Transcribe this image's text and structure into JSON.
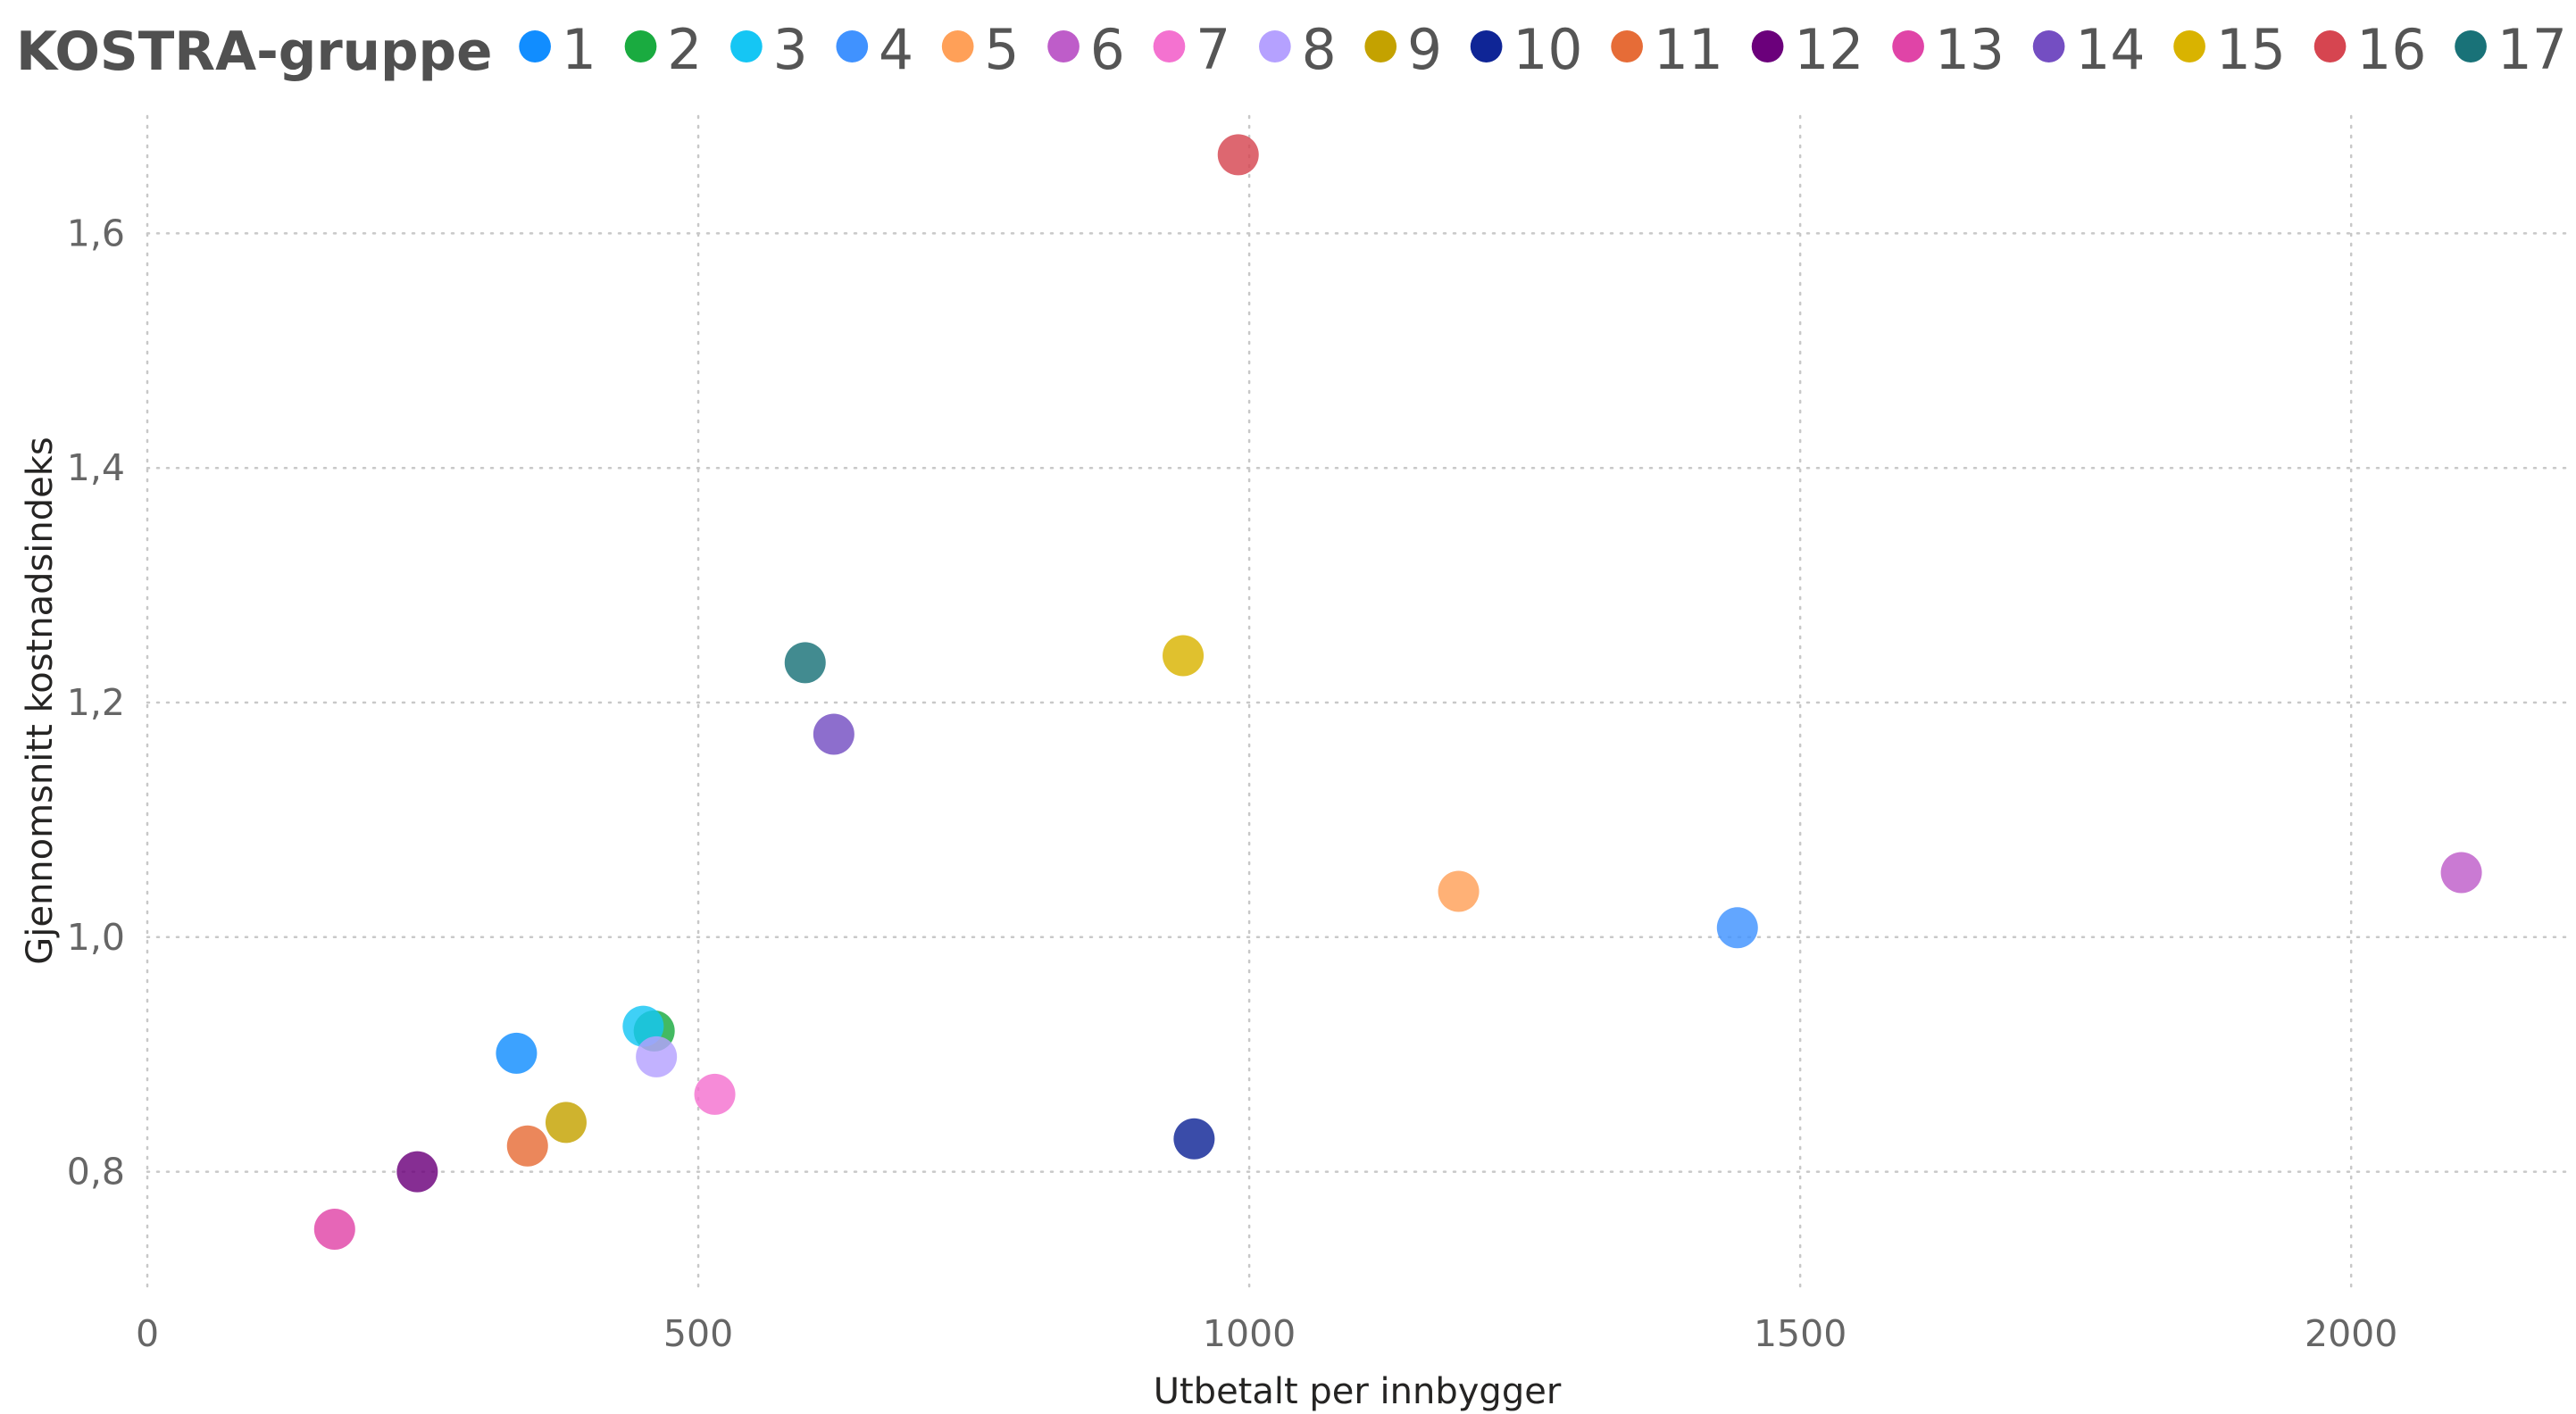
{
  "chart_data": {
    "type": "scatter",
    "legend_title": "KOSTRA-gruppe",
    "legend_position": "top-left",
    "xlabel": "Utbetalt per innbygger",
    "ylabel": "Gjennomsnitt kostnadsindeks",
    "xlim": [
      0,
      2200
    ],
    "ylim": [
      0.7,
      1.7
    ],
    "x_ticks": [
      0,
      500,
      1000,
      1500,
      2000
    ],
    "x_tick_labels": [
      "0",
      "500",
      "1000",
      "1500",
      "2000"
    ],
    "y_ticks": [
      0.8,
      1.0,
      1.2,
      1.4,
      1.6
    ],
    "y_tick_labels": [
      "0,8",
      "1,0",
      "1,2",
      "1,4",
      "1,6"
    ],
    "grid": true,
    "series": [
      {
        "name": "1",
        "color": "#118DFF",
        "x": 335,
        "y": 0.901
      },
      {
        "name": "2",
        "color": "#1AAB40",
        "x": 460,
        "y": 0.92
      },
      {
        "name": "3",
        "color": "#15C6F4",
        "x": 450,
        "y": 0.924
      },
      {
        "name": "4",
        "color": "#4092FF",
        "x": 1443,
        "y": 1.008
      },
      {
        "name": "5",
        "color": "#FFA058",
        "x": 1190,
        "y": 1.039
      },
      {
        "name": "6",
        "color": "#BE5DC9",
        "x": 2100,
        "y": 1.055
      },
      {
        "name": "7",
        "color": "#F472D0",
        "x": 515,
        "y": 0.866
      },
      {
        "name": "8",
        "color": "#B5A1FF",
        "x": 462,
        "y": 0.898
      },
      {
        "name": "9",
        "color": "#C4A200",
        "x": 380,
        "y": 0.842
      },
      {
        "name": "10",
        "color": "#0F2596",
        "x": 950,
        "y": 0.828
      },
      {
        "name": "11",
        "color": "#E66C37",
        "x": 345,
        "y": 0.822
      },
      {
        "name": "12",
        "color": "#6B007B",
        "x": 245,
        "y": 0.8
      },
      {
        "name": "13",
        "color": "#E044A7",
        "x": 170,
        "y": 0.751
      },
      {
        "name": "14",
        "color": "#744EC2",
        "x": 623,
        "y": 1.173
      },
      {
        "name": "15",
        "color": "#D9B300",
        "x": 940,
        "y": 1.24
      },
      {
        "name": "16",
        "color": "#D64550",
        "x": 990,
        "y": 1.667
      },
      {
        "name": "17",
        "color": "#197278",
        "x": 597,
        "y": 1.234
      }
    ]
  }
}
